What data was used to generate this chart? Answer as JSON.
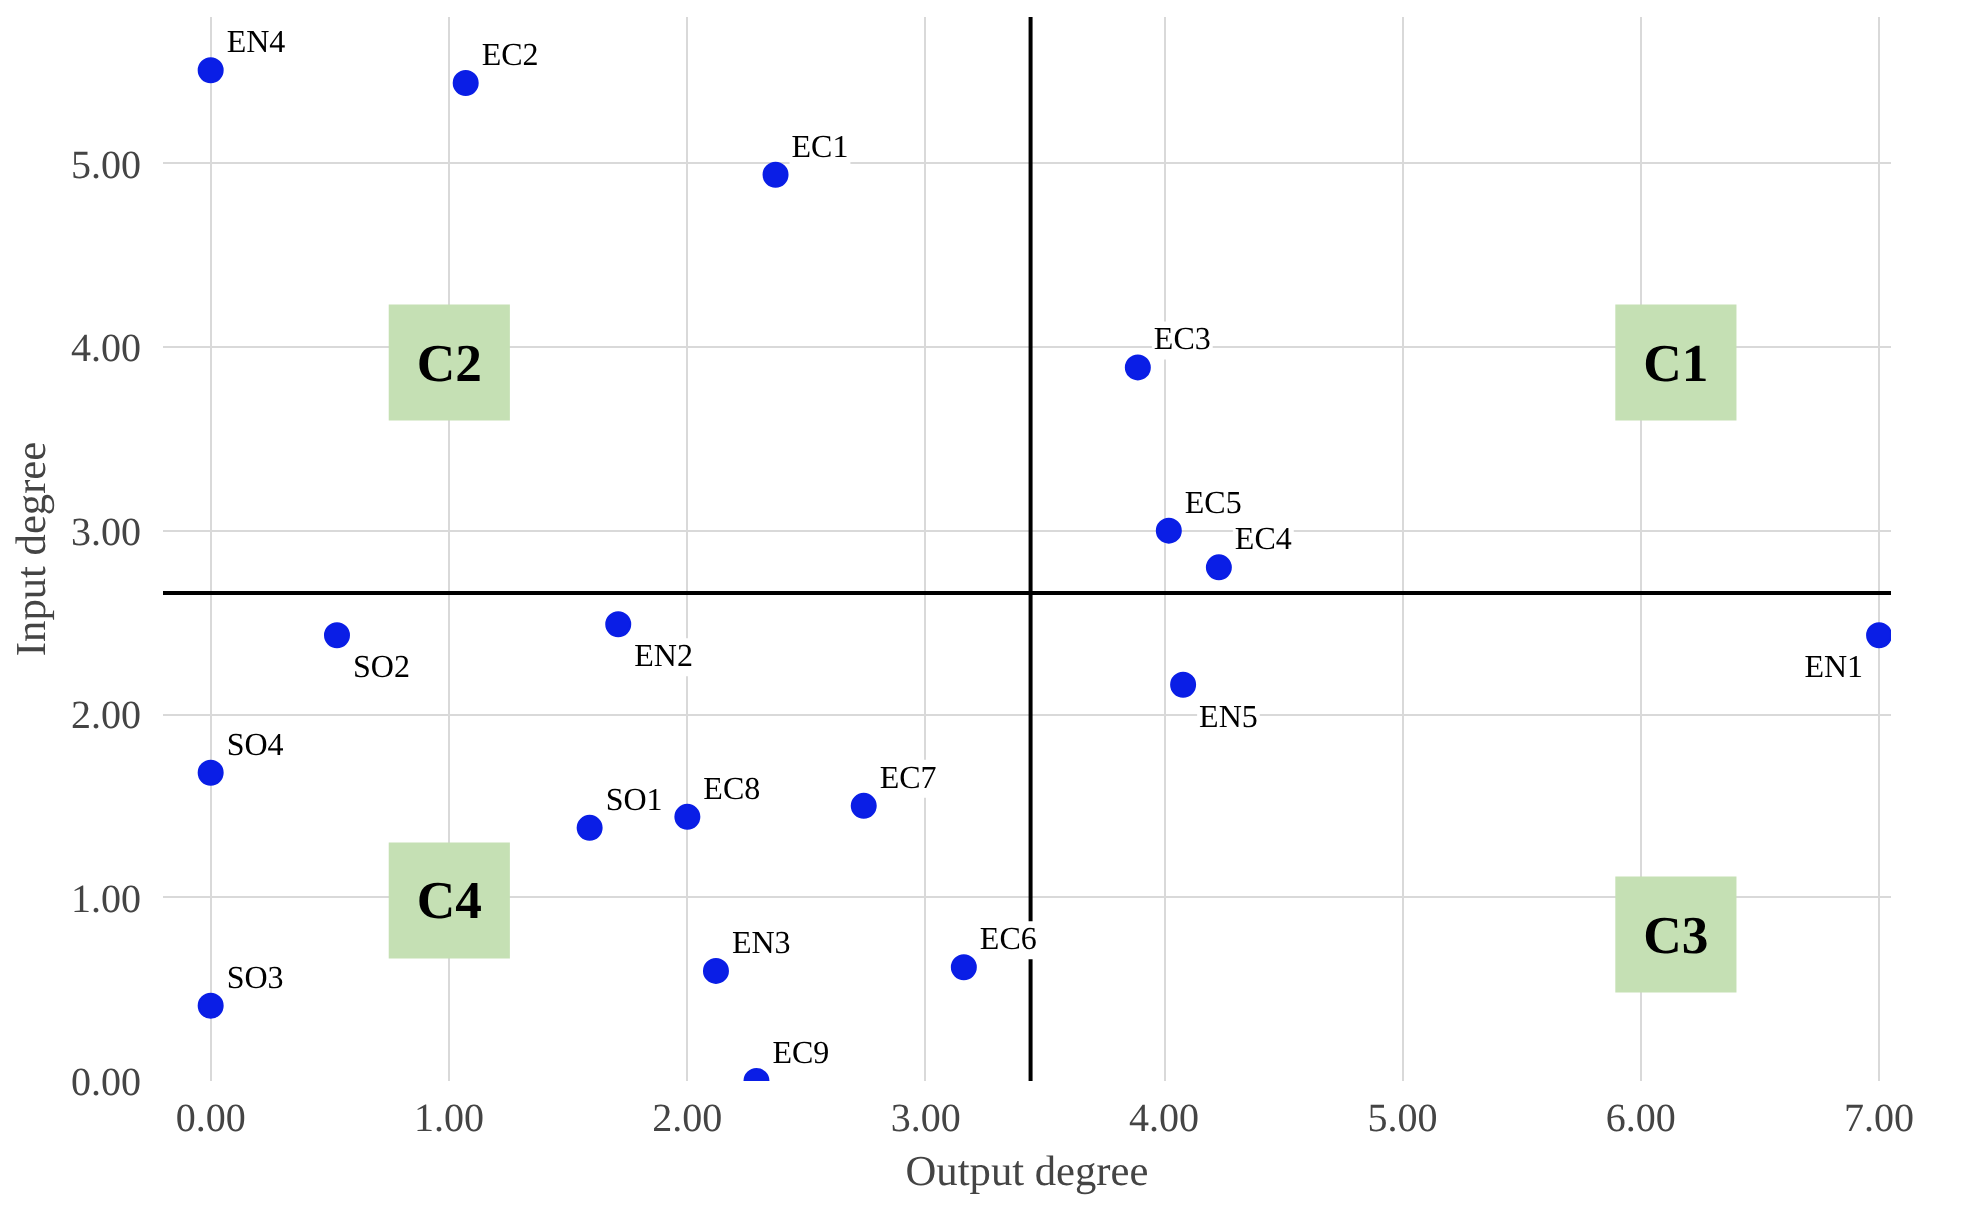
{
  "chart_data": {
    "type": "scatter",
    "xlabel": "Output degree",
    "ylabel": "Input degree",
    "xlim": [
      -0.2,
      7.05
    ],
    "ylim": [
      0,
      5.8
    ],
    "xticks": [
      {
        "value": 0,
        "label": "0.00"
      },
      {
        "value": 1,
        "label": "1.00"
      },
      {
        "value": 2,
        "label": "2.00"
      },
      {
        "value": 3,
        "label": "3.00"
      },
      {
        "value": 4,
        "label": "4.00"
      },
      {
        "value": 5,
        "label": "5.00"
      },
      {
        "value": 6,
        "label": "6.00"
      },
      {
        "value": 7,
        "label": "7.00"
      }
    ],
    "yticks": [
      {
        "value": 0,
        "label": "0.00"
      },
      {
        "value": 1,
        "label": "1.00"
      },
      {
        "value": 2,
        "label": "2.00"
      },
      {
        "value": 3,
        "label": "3.00"
      },
      {
        "value": 4,
        "label": "4.00"
      },
      {
        "value": 5,
        "label": "5.00"
      }
    ],
    "grid": true,
    "marker": "circle",
    "series": [
      {
        "name": "EN4",
        "color": "#0a1ee6",
        "x": [
          0.0
        ],
        "values": [
          5.51
        ]
      },
      {
        "name": "EC2",
        "color": "#0a1ee6",
        "x": [
          1.07
        ],
        "values": [
          5.44
        ]
      },
      {
        "name": "EC1",
        "color": "#0a1ee6",
        "x": [
          2.37
        ],
        "values": [
          4.94
        ]
      },
      {
        "name": "EC3",
        "color": "#0a1ee6",
        "x": [
          3.89
        ],
        "values": [
          3.89
        ]
      },
      {
        "name": "EC5",
        "color": "#0a1ee6",
        "x": [
          4.02
        ],
        "values": [
          3.0
        ]
      },
      {
        "name": "EC4",
        "color": "#0a1ee6",
        "x": [
          4.23
        ],
        "values": [
          2.8
        ]
      },
      {
        "name": "EN1",
        "color": "#0a1ee6",
        "x": [
          7.0
        ],
        "values": [
          2.43
        ]
      },
      {
        "name": "EN5",
        "color": "#0a1ee6",
        "x": [
          4.08
        ],
        "values": [
          2.16
        ]
      },
      {
        "name": "SO2",
        "color": "#0a1ee6",
        "x": [
          0.53
        ],
        "values": [
          2.43
        ]
      },
      {
        "name": "EN2",
        "color": "#0a1ee6",
        "x": [
          1.71
        ],
        "values": [
          2.49
        ]
      },
      {
        "name": "SO4",
        "color": "#0a1ee6",
        "x": [
          0.0
        ],
        "values": [
          1.68
        ]
      },
      {
        "name": "SO1",
        "color": "#0a1ee6",
        "x": [
          1.59
        ],
        "values": [
          1.38
        ]
      },
      {
        "name": "EC8",
        "color": "#0a1ee6",
        "x": [
          2.0
        ],
        "values": [
          1.44
        ]
      },
      {
        "name": "EC7",
        "color": "#0a1ee6",
        "x": [
          2.74
        ],
        "values": [
          1.5
        ]
      },
      {
        "name": "EN3",
        "color": "#0a1ee6",
        "x": [
          2.12
        ],
        "values": [
          0.6
        ]
      },
      {
        "name": "EC6",
        "color": "#0a1ee6",
        "x": [
          3.16
        ],
        "values": [
          0.62
        ]
      },
      {
        "name": "SO3",
        "color": "#0a1ee6",
        "x": [
          0.0
        ],
        "values": [
          0.41
        ]
      },
      {
        "name": "EC9",
        "color": "#0a1ee6",
        "x": [
          2.29
        ],
        "values": [
          0.0
        ]
      }
    ],
    "ref_lines": [
      {
        "axis": "x",
        "value": 3.44,
        "color": "#000000"
      },
      {
        "axis": "y",
        "value": 2.66,
        "color": "#000000"
      }
    ],
    "annotations": [
      "C1",
      "C2",
      "C3",
      "C4"
    ]
  }
}
